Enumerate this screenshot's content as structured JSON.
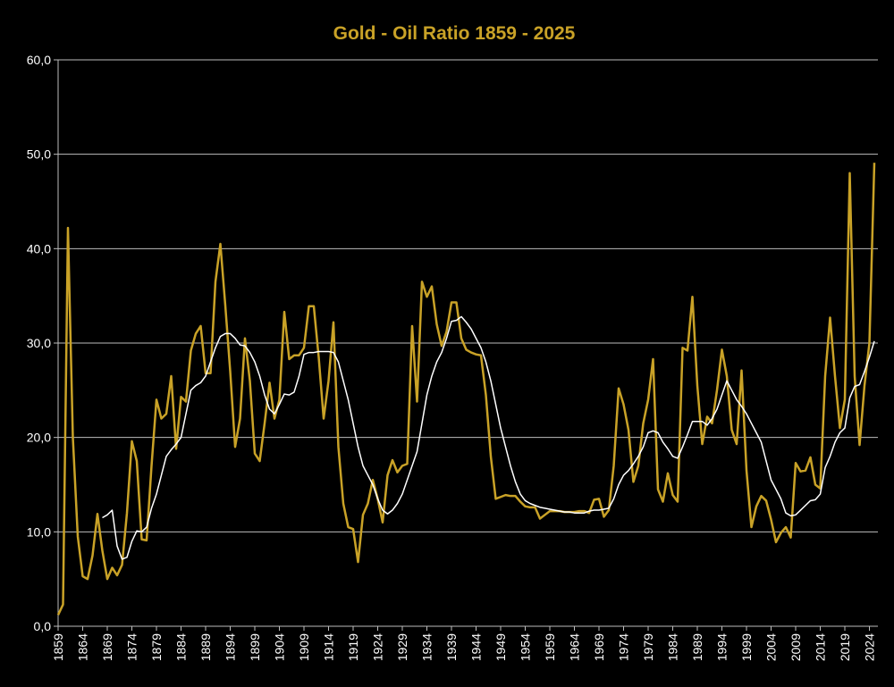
{
  "chart_data": {
    "type": "line",
    "title": "Gold - Oil Ratio 1859 - 2025",
    "categories": [
      "1859",
      null,
      null,
      null,
      null,
      "1864",
      null,
      null,
      null,
      null,
      "1869",
      null,
      null,
      null,
      null,
      "1874",
      null,
      null,
      null,
      null,
      "1879",
      null,
      null,
      null,
      null,
      "1884",
      null,
      null,
      null,
      null,
      "1889",
      null,
      null,
      null,
      null,
      "1894",
      null,
      null,
      null,
      null,
      "1899",
      null,
      null,
      null,
      null,
      "1904",
      null,
      null,
      null,
      null,
      "1909",
      null,
      null,
      null,
      null,
      "1914",
      null,
      null,
      null,
      null,
      "1919",
      null,
      null,
      null,
      null,
      "1924",
      null,
      null,
      null,
      null,
      "1929",
      null,
      null,
      null,
      null,
      "1934",
      null,
      null,
      null,
      null,
      "1939",
      null,
      null,
      null,
      null,
      "1944",
      null,
      null,
      null,
      null,
      "1949",
      null,
      null,
      null,
      null,
      "1954",
      null,
      null,
      null,
      null,
      "1959",
      null,
      null,
      null,
      null,
      "1964",
      null,
      null,
      null,
      null,
      "1969",
      null,
      null,
      null,
      null,
      "1974",
      null,
      null,
      null,
      null,
      "1979",
      null,
      null,
      null,
      null,
      "1984",
      null,
      null,
      null,
      null,
      "1989",
      null,
      null,
      null,
      null,
      "1994",
      null,
      null,
      null,
      null,
      "1999",
      null,
      null,
      null,
      null,
      "2004",
      null,
      null,
      null,
      null,
      "2009",
      null,
      null,
      null,
      null,
      "2014",
      null,
      null,
      null,
      null,
      "2019",
      null,
      null,
      null,
      null,
      "2024",
      null
    ],
    "series": [
      {
        "color": "#c9a227",
        "width": 2.5,
        "values": [
          1.2,
          2.3,
          42.2,
          20,
          9.5,
          5.3,
          5.0,
          7.5,
          11.9,
          8,
          5.0,
          6.2,
          5.4,
          6.5,
          12,
          19.6,
          17.5,
          9.2,
          9.1,
          17,
          24,
          22,
          22.5,
          26.5,
          18.8,
          24.3,
          23.8,
          29.2,
          31,
          31.8,
          26.8,
          26.8,
          36.5,
          40.5,
          34,
          27,
          19,
          22,
          30.5,
          26,
          18.3,
          17.5,
          21.5,
          25.8,
          22,
          24,
          33.3,
          28.3,
          28.7,
          28.7,
          29.5,
          33.9,
          33.9,
          28.5,
          22,
          26,
          32.2,
          19,
          13,
          10.5,
          10.3,
          6.8,
          11.8,
          13,
          15.5,
          13.5,
          11,
          16,
          17.6,
          16.3,
          17.0,
          17.2,
          31.8,
          23.8,
          36.5,
          34.9,
          36,
          32,
          29.7,
          31.2,
          34.3,
          34.3,
          30.5,
          29.3,
          29,
          28.8,
          28.7,
          24.5,
          18,
          13.5,
          13.7,
          13.9,
          13.8,
          13.8,
          13.2,
          12.7,
          12.6,
          12.6,
          11.4,
          11.8,
          12.2,
          12.2,
          12.2,
          12.1,
          12.1,
          12.1,
          12.2,
          12.2,
          12.0,
          13.4,
          13.5,
          11.6,
          12.3,
          17,
          25.2,
          23.5,
          20.8,
          15.3,
          17,
          21.5,
          24,
          28.3,
          14.5,
          13.2,
          16.2,
          13.9,
          13.2,
          29.5,
          29.2,
          34.9,
          25.5,
          19.3,
          22.2,
          21.5,
          25,
          29.3,
          26.5,
          20.8,
          19.3,
          27.1,
          16.5,
          10.5,
          12.7,
          13.8,
          13.3,
          11.3,
          8.9,
          9.9,
          10.5,
          9.4,
          17.3,
          16.4,
          16.5,
          17.9,
          15,
          14.6,
          26.5,
          32.7,
          26.5,
          21,
          24,
          48,
          26.5,
          19.2,
          25.5,
          30,
          49.1
        ]
      },
      {
        "color": "#ffffff",
        "width": 1.5,
        "values": [
          null,
          null,
          null,
          null,
          null,
          null,
          null,
          null,
          null,
          11.5,
          11.8,
          12.3,
          8.5,
          7.1,
          7.3,
          9,
          10.1,
          10.0,
          10.5,
          12.5,
          14,
          16,
          18,
          18.7,
          19.3,
          20,
          22.5,
          25,
          25.5,
          25.8,
          26.5,
          28,
          29.5,
          30.7,
          31,
          31,
          30.5,
          29.8,
          29.7,
          29,
          28,
          26.5,
          24.5,
          23,
          22.5,
          23.5,
          24.6,
          24.5,
          24.8,
          26.5,
          28.8,
          29,
          29,
          29.1,
          29.1,
          29.1,
          29.0,
          28,
          26,
          24,
          21.5,
          19,
          17,
          16,
          15,
          13.5,
          12.3,
          11.9,
          12.3,
          13,
          14,
          15.5,
          17,
          18.5,
          21.5,
          24.5,
          26.5,
          28,
          29,
          30.5,
          32.3,
          32.4,
          32.8,
          32.2,
          31.5,
          30.5,
          29.5,
          28,
          26,
          23.5,
          21,
          19,
          17,
          15.3,
          14,
          13.3,
          13.0,
          12.8,
          12.6,
          12.5,
          12.4,
          12.3,
          12.2,
          12.1,
          12.1,
          12.0,
          12.0,
          12.0,
          12.2,
          12.3,
          12.3,
          12.4,
          12.5,
          13.5,
          15,
          16,
          16.5,
          17.2,
          18,
          19,
          20.5,
          20.7,
          20.5,
          19.5,
          18.8,
          18,
          17.8,
          19,
          20.3,
          21.7,
          21.7,
          21.7,
          21.3,
          22,
          23,
          24.5,
          26,
          25,
          24,
          23.3,
          22.5,
          21.5,
          20.5,
          19.5,
          17.5,
          15.5,
          14.5,
          13.5,
          12,
          11.7,
          11.8,
          12.3,
          12.8,
          13.3,
          13.4,
          14,
          16.8,
          18,
          19.5,
          20.5,
          21,
          24.2,
          25.4,
          25.6,
          27,
          28.5,
          30.2
        ]
      }
    ],
    "ylim": [
      0,
      60
    ],
    "yticks": [
      {
        "value": 0,
        "label": "0,0"
      },
      {
        "value": 10,
        "label": "10,0"
      },
      {
        "value": 20,
        "label": "20,0"
      },
      {
        "value": 30,
        "label": "30,0"
      },
      {
        "value": 40,
        "label": "40,0"
      },
      {
        "value": 50,
        "label": "50,0"
      },
      {
        "value": 60,
        "label": "60,0"
      }
    ],
    "grid": true
  }
}
